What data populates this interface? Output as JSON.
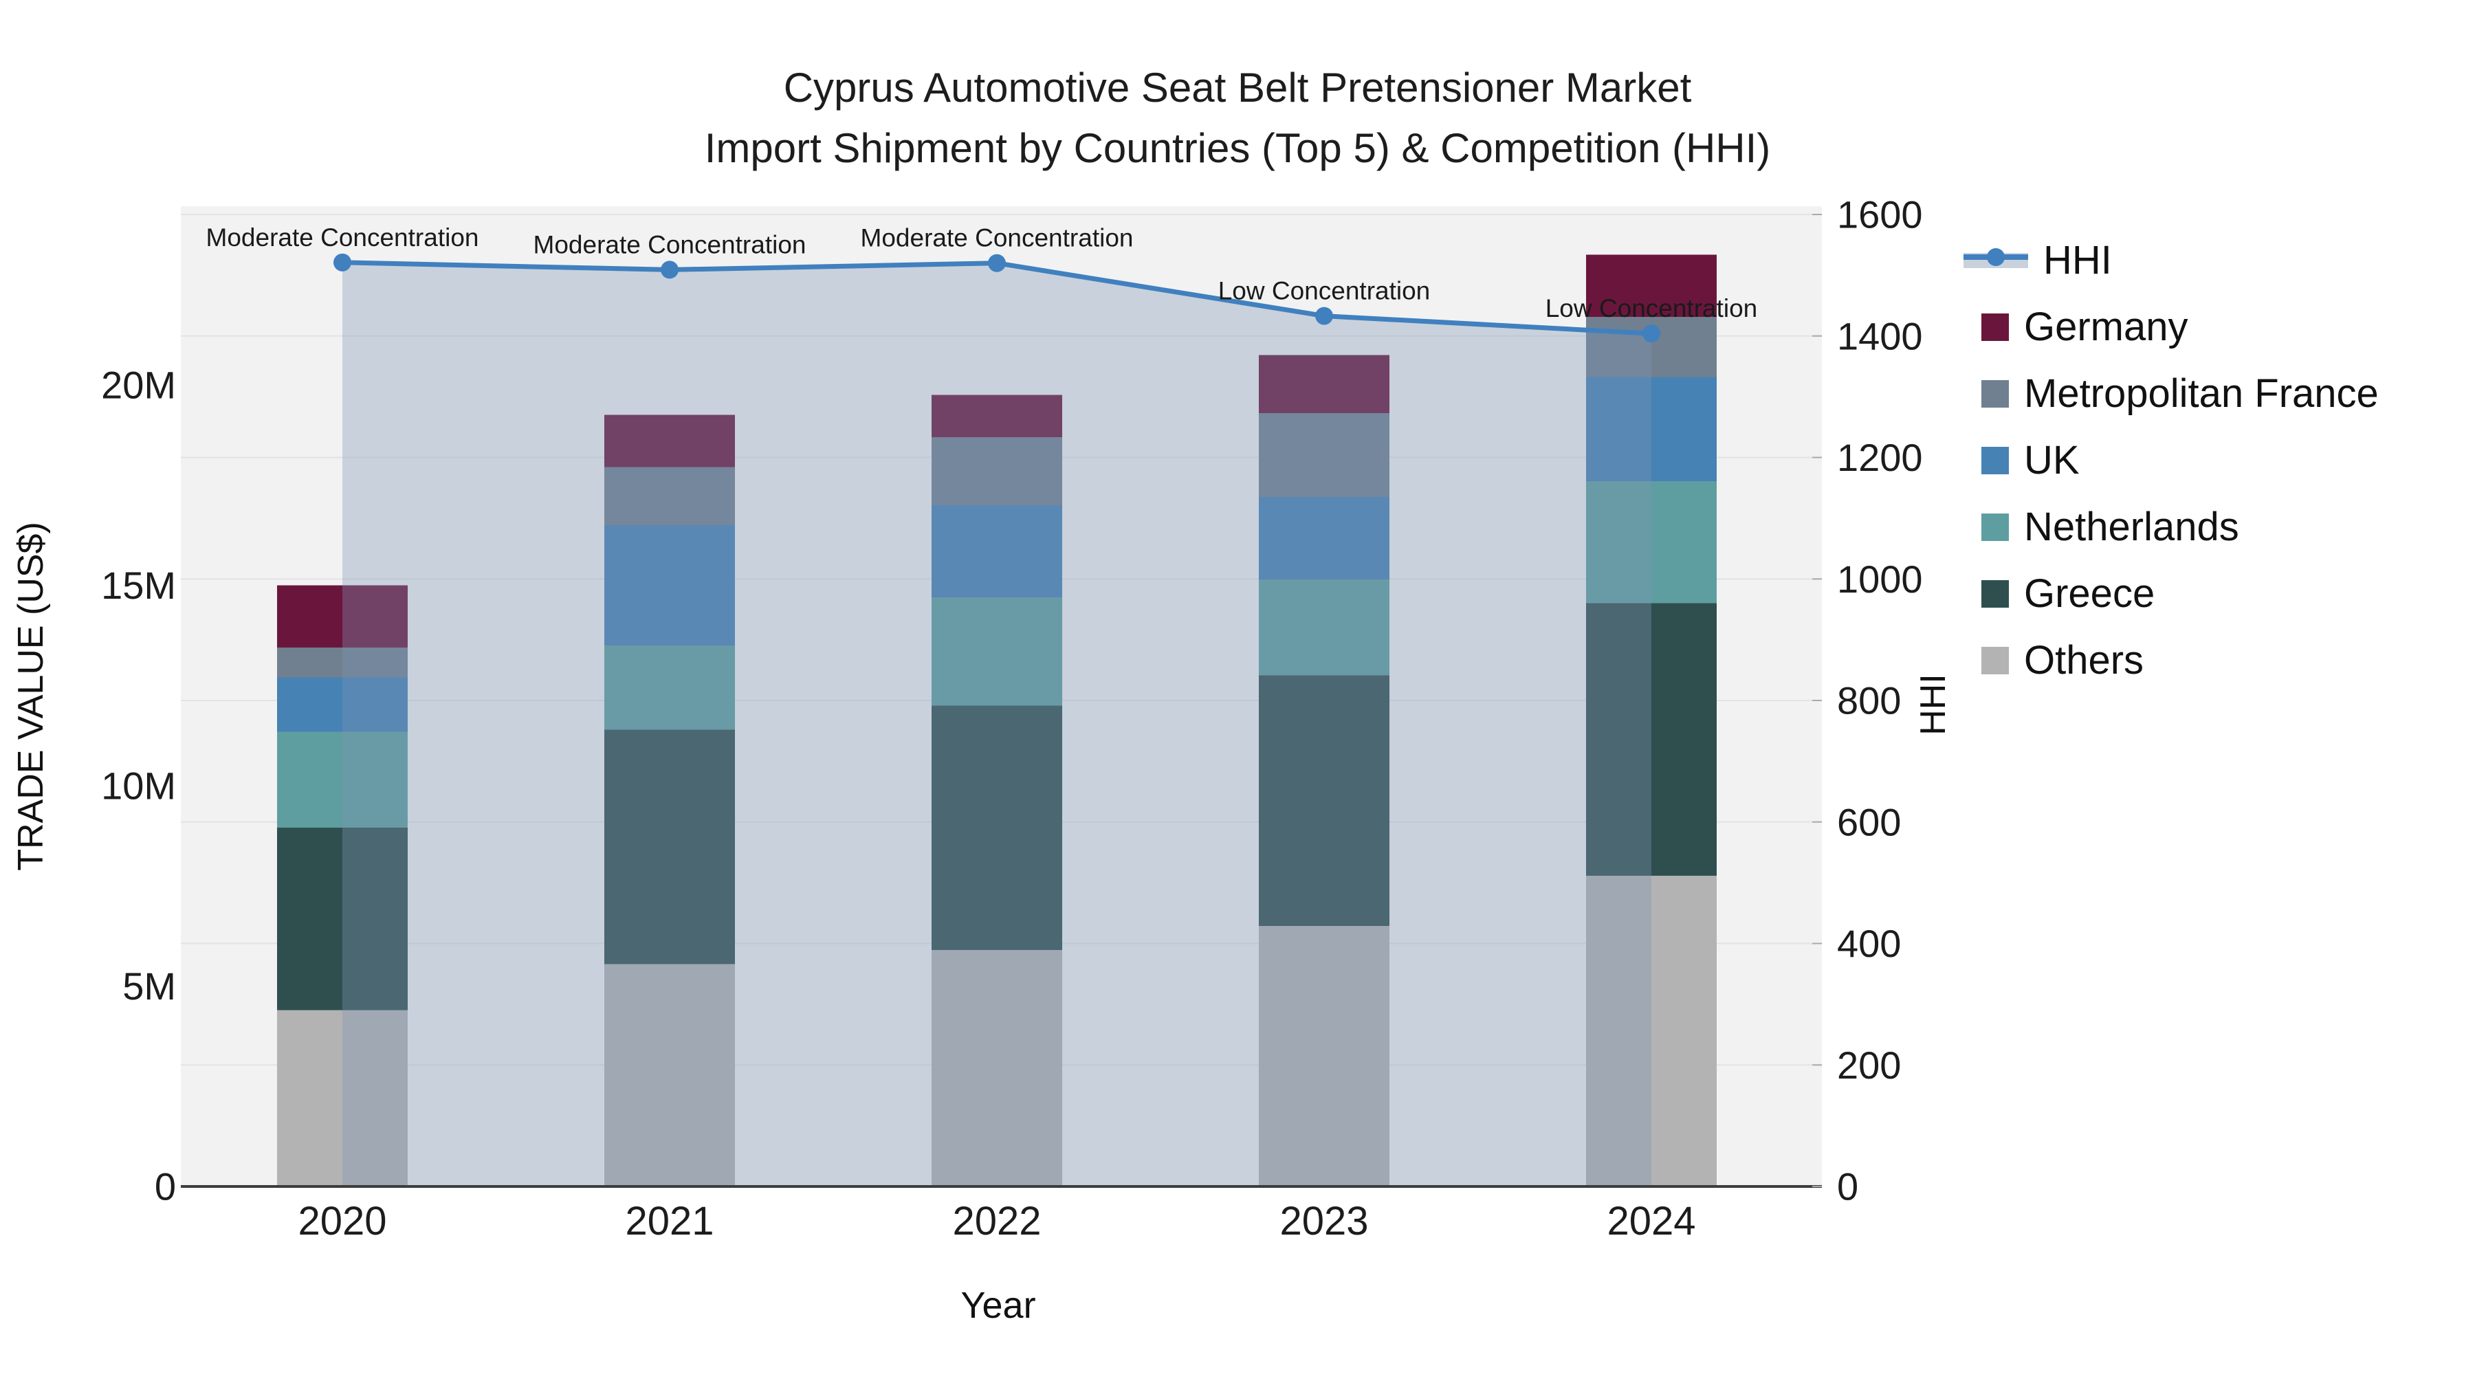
{
  "title": {
    "line1": "Cyprus Automotive Seat Belt Pretensioner Market",
    "line2": "Import Shipment by Countries (Top 5) & Competition (HHI)"
  },
  "axes": {
    "y_left_title": "TRADE VALUE (US$)",
    "y_right_title": "HHI",
    "x_title": "Year"
  },
  "legend": {
    "line_item": {
      "label": "HHI"
    },
    "bar_items": [
      {
        "label": "Germany"
      },
      {
        "label": "Metropolitan France"
      },
      {
        "label": "UK"
      },
      {
        "label": "Netherlands"
      },
      {
        "label": "Greece"
      },
      {
        "label": "Others"
      }
    ]
  },
  "colors": {
    "germany": "#6a163c",
    "metropolitan_france": "#708090",
    "uk": "#4682b4",
    "netherlands": "#5f9ea0",
    "greece": "#2f4f4f",
    "others": "#b3b3b3",
    "hhi_line": "#4080bf",
    "hhi_fill": "rgba(125,148,180,0.35)",
    "hhi_band_legend": "#c9d2dc",
    "plot_bg": "#f2f2f2",
    "gridline": "#e3e3e7",
    "axis_line": "#3d3d3d",
    "tick_text": "#1c1c1c",
    "annotation_text": "#1a1a1a"
  },
  "chart_data": {
    "type": "bar",
    "subtype": "stacked-bars-with-line-overlay",
    "categories": [
      "2020",
      "2021",
      "2022",
      "2023",
      "2024"
    ],
    "bar_unit": "Million US$",
    "series": [
      {
        "name": "Others",
        "color_key": "others",
        "values": [
          4.4,
          5.55,
          5.9,
          6.5,
          7.75
        ]
      },
      {
        "name": "Greece",
        "color_key": "greece",
        "values": [
          4.55,
          5.85,
          6.1,
          6.25,
          6.8
        ]
      },
      {
        "name": "Netherlands",
        "color_key": "netherlands",
        "values": [
          2.4,
          2.1,
          2.7,
          2.4,
          3.05
        ]
      },
      {
        "name": "UK",
        "color_key": "uk",
        "values": [
          1.35,
          3.0,
          2.3,
          2.05,
          2.6
        ]
      },
      {
        "name": "Metropolitan France",
        "color_key": "metropolitan_france",
        "values": [
          0.75,
          1.45,
          1.7,
          2.1,
          1.5
        ]
      },
      {
        "name": "Germany",
        "color_key": "germany",
        "values": [
          1.55,
          1.3,
          1.05,
          1.45,
          1.55
        ]
      }
    ],
    "line_series": {
      "name": "HHI",
      "values": [
        1521,
        1509,
        1520,
        1433,
        1404
      ],
      "axis": "right"
    },
    "annotations": [
      "Moderate Concentration",
      "Moderate Concentration",
      "Moderate Concentration",
      "Low Concentration",
      "Low Concentration"
    ],
    "y_left": {
      "label": "TRADE VALUE (US$)",
      "tick_labels": [
        "0",
        "5M",
        "10M",
        "15M",
        "20M"
      ],
      "tick_values": [
        0,
        5,
        10,
        15,
        20
      ],
      "range": [
        0,
        24.45
      ]
    },
    "y_right": {
      "label": "HHI",
      "tick_values": [
        0,
        200,
        400,
        600,
        800,
        1000,
        1200,
        1400,
        1600
      ],
      "range": [
        0,
        1600
      ]
    },
    "grid": "right-axis-horizontal",
    "legend_position": "right"
  }
}
